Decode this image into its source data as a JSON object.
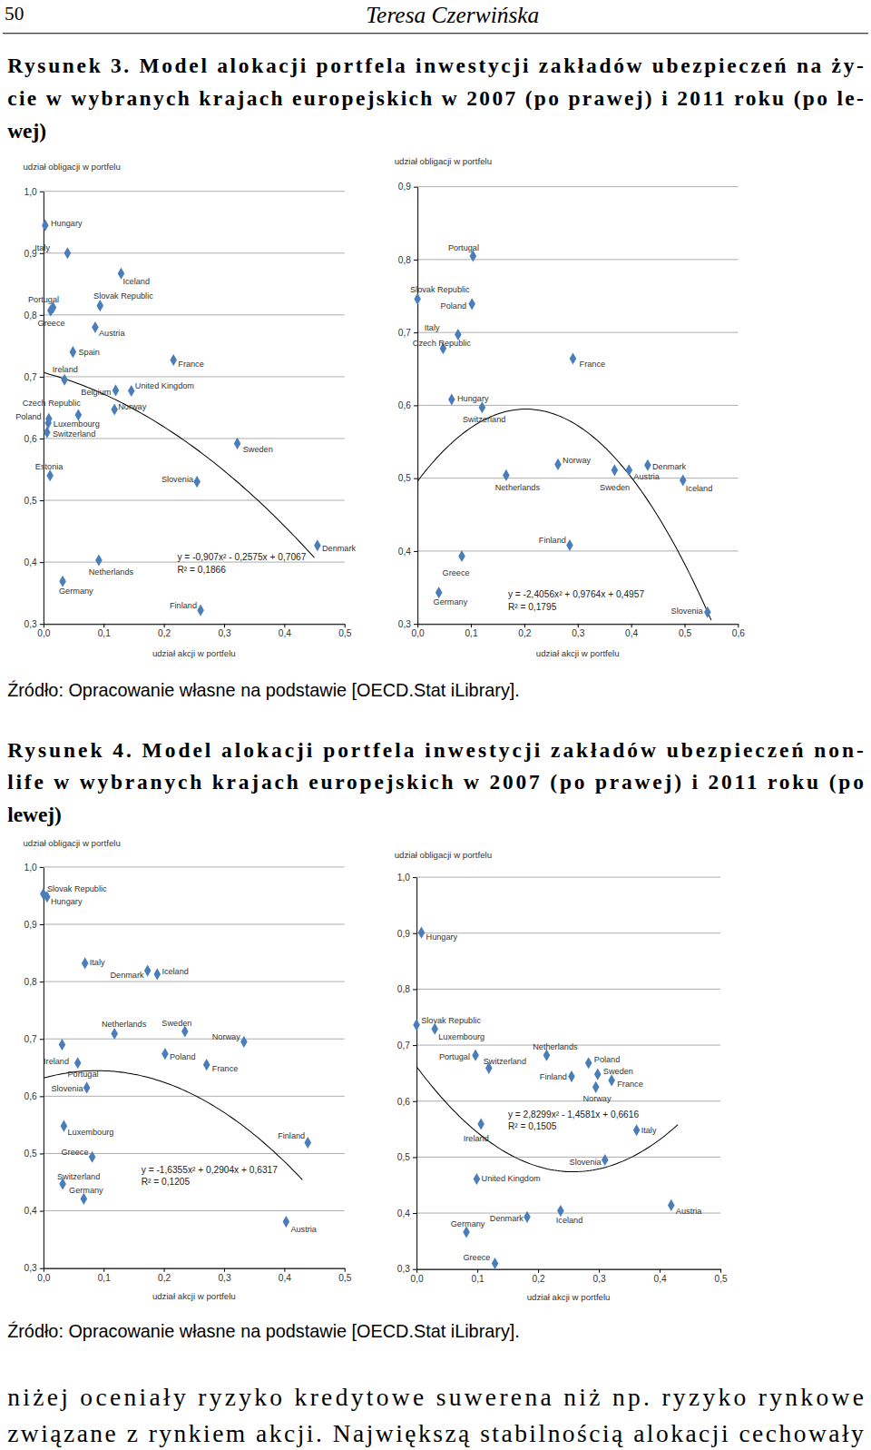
{
  "document": {
    "page_number": 50,
    "running_head": "Teresa Czerwińska",
    "figures": [
      {
        "caption": [
          "Rysunek 3. Model alokacji portfela inwestycji zakładów ubezpieczeń na ży-",
          "cie w wybranych krajach europejskich w 2007 (po prawej) i 2011 roku (po le-",
          "wej)"
        ],
        "source": "Źródło: Opracowanie własne na podstawie [OECD.Stat iLibrary]."
      },
      {
        "caption": [
          "Rysunek 4. Model alokacji portfela inwestycji zakładów ubezpieczeń non-",
          "life w wybranych krajach europejskich w 2007 (po prawej) i 2011 roku (po",
          "lewej)"
        ],
        "source": "Źródło: Opracowanie własne na podstawie [OECD.Stat iLibrary]."
      }
    ],
    "body": [
      "niżej oceniały ryzyko kredytowe suwerena niż np. ryzyko rynkowe",
      "związane z rynkiem akcji. Największą stabilnością alokacji cechowały"
    ]
  },
  "chart_data": [
    {
      "type": "scatter",
      "x_label": "udział akcji w portfelu",
      "y_label": "udział obligacji w portfelu",
      "xlim": [
        0,
        0.5
      ],
      "xticks": [
        {
          "value": 0,
          "label": "0,0"
        },
        {
          "value": 0.1,
          "label": "0,1"
        },
        {
          "value": 0.2,
          "label": "0,2"
        },
        {
          "value": 0.3,
          "label": "0,3"
        },
        {
          "value": 0.4,
          "label": "0,4"
        },
        {
          "value": 0.5,
          "label": "0,5"
        }
      ],
      "ylim": [
        0.3,
        1.0
      ],
      "yticks": [
        {
          "value": 0.3,
          "label": "0,3"
        },
        {
          "value": 0.4,
          "label": "0,4"
        },
        {
          "value": 0.5,
          "label": "0,5"
        },
        {
          "value": 0.6,
          "label": "0,6"
        },
        {
          "value": 0.7,
          "label": "0,7"
        },
        {
          "value": 0.8,
          "label": "0,8"
        },
        {
          "value": 0.9,
          "label": "0,9"
        },
        {
          "value": 1.0,
          "label": "1,0"
        }
      ],
      "grid": true,
      "color": "#4a7ebb",
      "marker": "diamond",
      "labels": [
        "Hungary",
        "Italy",
        "Iceland",
        "Slovak Republic",
        "Portugal",
        "Greece",
        "Austria",
        "Spain",
        "Ireland",
        "France",
        "Belgium",
        "United Kingdom",
        "Norway",
        "Czech Republic",
        "Poland",
        "Luxembourg",
        "Switzerland",
        "Estonia",
        "Sweden",
        "Slovenia",
        "Denmark",
        "Netherlands",
        "Germany",
        "Finland"
      ],
      "x": [
        0.003,
        0.04,
        0.129,
        0.094,
        0.016,
        0.012,
        0.086,
        0.049,
        0.035,
        0.216,
        0.12,
        0.146,
        0.118,
        0.008,
        0.009,
        0.058,
        0.006,
        0.011,
        0.322,
        0.255,
        0.455,
        0.092,
        0.032,
        0.261
      ],
      "values": [
        0.945,
        0.9,
        0.867,
        0.815,
        0.812,
        0.807,
        0.78,
        0.74,
        0.695,
        0.727,
        0.678,
        0.677,
        0.647,
        0.625,
        0.632,
        0.638,
        0.61,
        0.54,
        0.592,
        0.53,
        0.427,
        0.403,
        0.369,
        0.322
      ],
      "trendline": {
        "coefficients": [
          -0.907,
          -0.2575,
          0.7067
        ],
        "xlim": [
          0,
          0.45
        ],
        "color": "#000000",
        "equation": "y = -0,907x² - 0,2575x + 0,7067",
        "r2_label": "R² = 0,1866"
      }
    },
    {
      "type": "scatter",
      "x_label": "udział akcji w portfelu",
      "y_label": "udział obligacji w portfelu",
      "xlim": [
        0,
        0.6
      ],
      "xticks": [
        {
          "value": 0,
          "label": "0,0"
        },
        {
          "value": 0.1,
          "label": "0,1"
        },
        {
          "value": 0.2,
          "label": "0,2"
        },
        {
          "value": 0.3,
          "label": "0,3"
        },
        {
          "value": 0.4,
          "label": "0,4"
        },
        {
          "value": 0.5,
          "label": "0,5"
        },
        {
          "value": 0.6,
          "label": "0,6"
        }
      ],
      "ylim": [
        0.3,
        0.9
      ],
      "yticks": [
        {
          "value": 0.3,
          "label": "0,3"
        },
        {
          "value": 0.4,
          "label": "0,4"
        },
        {
          "value": 0.5,
          "label": "0,5"
        },
        {
          "value": 0.6,
          "label": "0,6"
        },
        {
          "value": 0.7,
          "label": "0,7"
        },
        {
          "value": 0.8,
          "label": "0,8"
        },
        {
          "value": 0.9,
          "label": "0,9"
        }
      ],
      "grid": true,
      "color": "#4a7ebb",
      "marker": "diamond",
      "labels": [
        "Portugal",
        "Slovak Republic",
        "Poland",
        "Italy",
        "Czech Republic",
        "France",
        "Hungary",
        "Switzerland",
        "Norway",
        "Netherlands",
        "Sweden",
        "Austria",
        "Denmark",
        "Iceland",
        "Finland",
        "Greece",
        "Germany",
        "Slovenia"
      ],
      "x": [
        0.104,
        0.0,
        0.102,
        0.076,
        0.048,
        0.291,
        0.064,
        0.121,
        0.263,
        0.166,
        0.369,
        0.396,
        0.431,
        0.497,
        0.285,
        0.083,
        0.04,
        0.543
      ],
      "values": [
        0.805,
        0.746,
        0.739,
        0.697,
        0.678,
        0.664,
        0.608,
        0.597,
        0.519,
        0.504,
        0.511,
        0.511,
        0.518,
        0.497,
        0.408,
        0.393,
        0.343,
        0.316
      ],
      "trendline": {
        "coefficients": [
          -2.4056,
          0.9764,
          0.4957
        ],
        "xlim": [
          0,
          0.55
        ],
        "color": "#000000",
        "equation": "y = -2,4056x² + 0,9764x + 0,4957",
        "r2_label": "R² = 0,1795"
      }
    },
    {
      "type": "scatter",
      "x_label": "udział akcji w portfelu",
      "y_label": "udział obligacji w portfelu",
      "xlim": [
        0,
        0.5
      ],
      "xticks": [
        {
          "value": 0,
          "label": "0,0"
        },
        {
          "value": 0.1,
          "label": "0,1"
        },
        {
          "value": 0.2,
          "label": "0,2"
        },
        {
          "value": 0.3,
          "label": "0,3"
        },
        {
          "value": 0.4,
          "label": "0,4"
        },
        {
          "value": 0.5,
          "label": "0,5"
        }
      ],
      "ylim": [
        0.3,
        1.0
      ],
      "yticks": [
        {
          "value": 0.3,
          "label": "0,3"
        },
        {
          "value": 0.4,
          "label": "0,4"
        },
        {
          "value": 0.5,
          "label": "0,5"
        },
        {
          "value": 0.6,
          "label": "0,6"
        },
        {
          "value": 0.7,
          "label": "0,7"
        },
        {
          "value": 0.8,
          "label": "0,8"
        },
        {
          "value": 0.9,
          "label": "0,9"
        },
        {
          "value": 1.0,
          "label": "1,0"
        }
      ],
      "grid": true,
      "color": "#4a7ebb",
      "marker": "diamond",
      "labels": [
        "Slovak Republic",
        "Hungary",
        "Italy",
        "Denmark",
        "Iceland",
        "Netherlands",
        "Sweden",
        "Norway",
        "Ireland",
        "Poland",
        "Portugal",
        "France",
        "Slovenia",
        "Luxembourg",
        "Greece",
        "Finland",
        "Switzerland",
        "Germany",
        "Austria"
      ],
      "x": [
        0.0,
        0.006,
        0.069,
        0.173,
        0.189,
        0.118,
        0.235,
        0.333,
        0.031,
        0.202,
        0.057,
        0.271,
        0.072,
        0.034,
        0.081,
        0.439,
        0.032,
        0.067,
        0.403
      ],
      "values": [
        0.953,
        0.948,
        0.832,
        0.819,
        0.813,
        0.709,
        0.713,
        0.695,
        0.69,
        0.674,
        0.658,
        0.655,
        0.615,
        0.548,
        0.494,
        0.519,
        0.447,
        0.421,
        0.381
      ],
      "trendline": {
        "coefficients": [
          -1.6355,
          0.2904,
          0.6317
        ],
        "xlim": [
          0,
          0.43
        ],
        "color": "#000000",
        "equation": "y = -1,6355x² + 0,2904x + 0,6317",
        "r2_label": "R² = 0,1205"
      }
    },
    {
      "type": "scatter",
      "x_label": "udział akcji w portfelu",
      "y_label": "udział obligacji w portfelu",
      "xlim": [
        0,
        0.5
      ],
      "xticks": [
        {
          "value": 0,
          "label": "0,0"
        },
        {
          "value": 0.1,
          "label": "0,1"
        },
        {
          "value": 0.2,
          "label": "0,2"
        },
        {
          "value": 0.3,
          "label": "0,3"
        },
        {
          "value": 0.4,
          "label": "0,4"
        },
        {
          "value": 0.5,
          "label": "0,5"
        }
      ],
      "ylim": [
        0.3,
        1.0
      ],
      "yticks": [
        {
          "value": 0.3,
          "label": "0,3"
        },
        {
          "value": 0.4,
          "label": "0,4"
        },
        {
          "value": 0.5,
          "label": "0,5"
        },
        {
          "value": 0.6,
          "label": "0,6"
        },
        {
          "value": 0.7,
          "label": "0,7"
        },
        {
          "value": 0.8,
          "label": "0,8"
        },
        {
          "value": 0.9,
          "label": "0,9"
        },
        {
          "value": 1.0,
          "label": "1,0"
        }
      ],
      "grid": true,
      "color": "#4a7ebb",
      "marker": "diamond",
      "labels": [
        "Hungary",
        "Slovak Republic",
        "Luxembourg",
        "Portugal",
        "Switzerland",
        "Netherlands",
        "Poland",
        "Finland",
        "Sweden",
        "Norway",
        "France",
        "Italy",
        "Ireland",
        "Slovenia",
        "United Kingdom",
        "Austria",
        "Iceland",
        "Denmark",
        "Germany",
        "Greece"
      ],
      "x": [
        0.008,
        0.0,
        0.03,
        0.097,
        0.119,
        0.214,
        0.283,
        0.255,
        0.298,
        0.295,
        0.321,
        0.362,
        0.106,
        0.31,
        0.099,
        0.419,
        0.237,
        0.182,
        0.082,
        0.129
      ],
      "values": [
        0.901,
        0.736,
        0.729,
        0.682,
        0.659,
        0.682,
        0.668,
        0.644,
        0.648,
        0.625,
        0.637,
        0.548,
        0.559,
        0.495,
        0.461,
        0.414,
        0.404,
        0.393,
        0.366,
        0.31
      ],
      "trendline": {
        "coefficients": [
          2.8299,
          -1.4581,
          0.6616
        ],
        "xlim": [
          0,
          0.43
        ],
        "color": "#000000",
        "equation": "y = 2,8299x² - 1,4581x + 0,6616",
        "r2_label": "R² = 0,1505"
      }
    }
  ]
}
